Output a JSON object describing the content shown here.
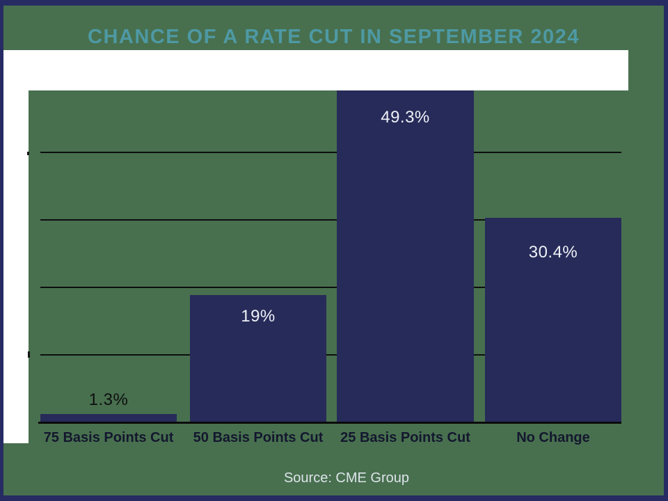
{
  "title": "CHANCE OF A RATE CUT IN SEPTEMBER 2024",
  "source": {
    "text": "Source: CME Group"
  },
  "colors": {
    "frame_navy": "#262c63",
    "slide_green": "#48704f",
    "bar_navy": "#272b59",
    "title_teal": "#4e99a4",
    "grid_black": "#0e0e0e",
    "category_label_dark": "#14172e",
    "value_label_light": "#eef1f7",
    "value_label_dark": "#0e0e0e",
    "source_light": "#dde4ea",
    "panel_white": "#ffffff"
  },
  "chart_data": {
    "type": "bar",
    "title": "CHANCE OF A RATE CUT IN SEPTEMBER 2024",
    "categories": [
      "75 Basis Points Cut",
      "50 Basis Points Cut",
      "25 Basis Points Cut",
      "No Change"
    ],
    "values": [
      1.3,
      19,
      49.3,
      30.4
    ],
    "value_labels": [
      "1.3%",
      "19%",
      "49.3%",
      "30.4%"
    ],
    "value_label_inside": [
      false,
      true,
      true,
      true
    ],
    "xlabel": "",
    "ylabel": "",
    "ylim": [
      0,
      50
    ],
    "gridlines_percent": [
      10,
      20,
      30,
      40
    ],
    "grid": true,
    "legend": "none",
    "y_tick_labels_visible": false,
    "source": "Source: CME Group"
  }
}
